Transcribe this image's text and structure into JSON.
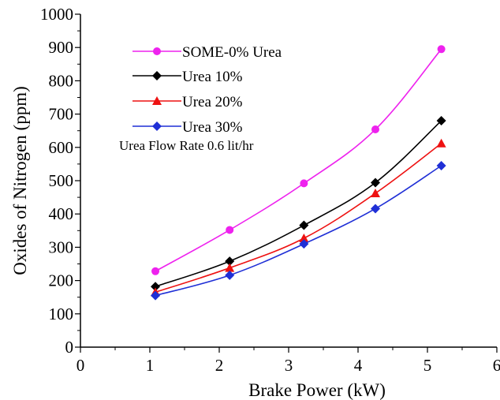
{
  "chart_data": {
    "type": "line",
    "xlabel": "Brake Power (kW)",
    "ylabel": "Oxides of Nitrogen (ppm)",
    "xlim": [
      0,
      6
    ],
    "ylim": [
      0,
      1000
    ],
    "xticks": [
      "0",
      "1",
      "2",
      "3",
      "4",
      "5",
      "6"
    ],
    "yticks": [
      "0",
      "100",
      "200",
      "300",
      "400",
      "500",
      "600",
      "700",
      "800",
      "900",
      "1000"
    ],
    "x": [
      1.08,
      2.15,
      3.22,
      4.25,
      5.2
    ],
    "series": [
      {
        "name": "SOME-0% Urea",
        "color": "#ee22ee",
        "marker": "circle",
        "values": [
          228,
          352,
          492,
          654,
          895
        ]
      },
      {
        "name": "Urea 10%",
        "color": "#000000",
        "marker": "diamond",
        "values": [
          182,
          258,
          366,
          494,
          680
        ]
      },
      {
        "name": "Urea 20%",
        "color": "#ee1111",
        "marker": "triangle",
        "values": [
          165,
          238,
          327,
          462,
          612
        ]
      },
      {
        "name": "Urea 30%",
        "color": "#1f2fd6",
        "marker": "diamond",
        "values": [
          155,
          216,
          310,
          416,
          545
        ]
      }
    ],
    "annotation": "Urea Flow Rate 0.6 lit/hr",
    "legend_position": "top-left",
    "grid": false
  }
}
